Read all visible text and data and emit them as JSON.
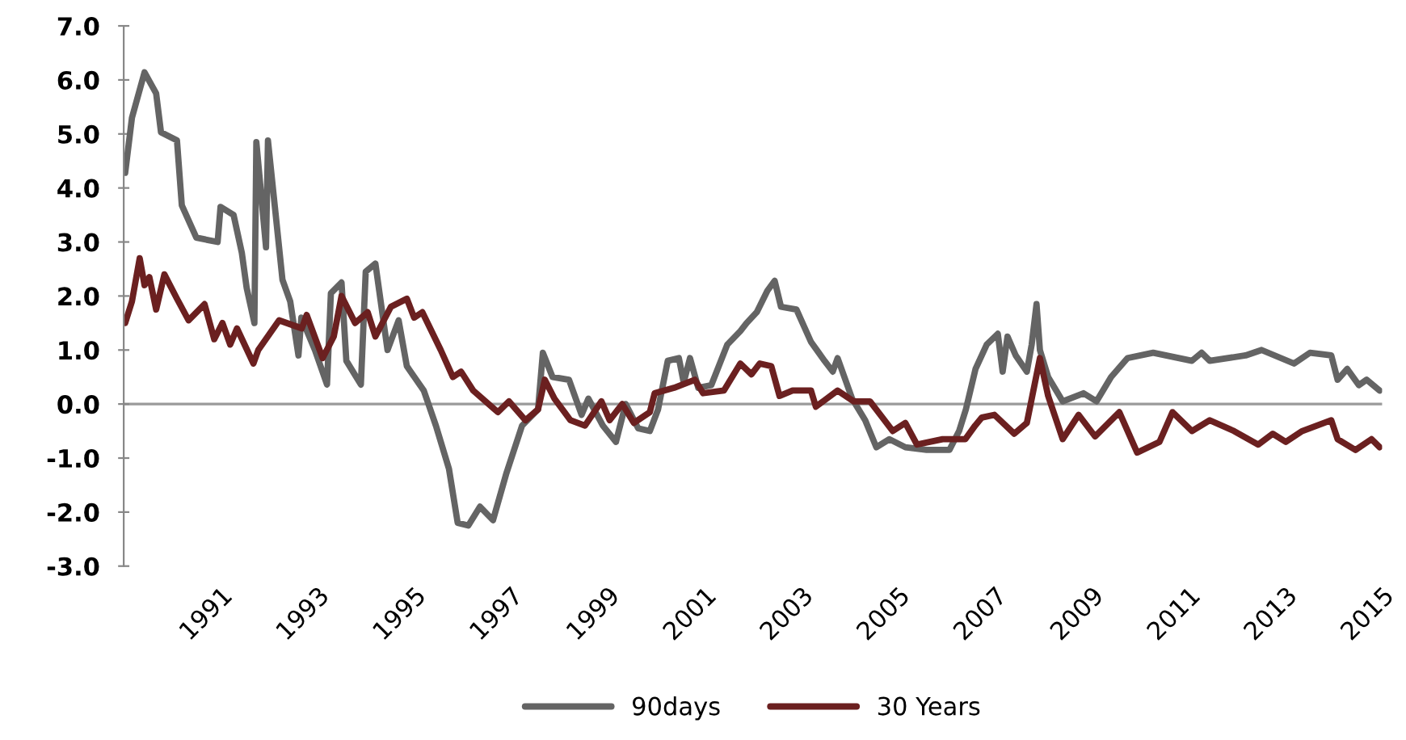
{
  "chart_data": {
    "type": "line",
    "ylim": [
      -3,
      7
    ],
    "yticks": [
      {
        "value": -3,
        "label": "-3.0"
      },
      {
        "value": -2,
        "label": "-2.0"
      },
      {
        "value": -1,
        "label": "-1.0"
      },
      {
        "value": 0,
        "label": "0.0"
      },
      {
        "value": 1,
        "label": "1.0"
      },
      {
        "value": 2,
        "label": "2.0"
      },
      {
        "value": 3,
        "label": "3.0"
      },
      {
        "value": 4,
        "label": "4.0"
      },
      {
        "value": 5,
        "label": "5.0"
      },
      {
        "value": 6,
        "label": "6.0"
      },
      {
        "value": 7,
        "label": "7.0"
      }
    ],
    "xlim": [
      1989,
      2015
    ],
    "xticks": [
      1991,
      1993,
      1995,
      1997,
      1999,
      2001,
      2003,
      2005,
      2007,
      2009,
      2011,
      2013,
      2015
    ],
    "ref_lines": [
      {
        "axis": "y",
        "value": 0,
        "color": "#9a9a9a"
      }
    ],
    "grid": false,
    "legend": "bottom",
    "series": [
      {
        "name": "90days",
        "color": "#646464",
        "x": [
          1989.03,
          1989.17,
          1989.43,
          1989.67,
          1989.77,
          1990.1,
          1990.2,
          1990.5,
          1990.94,
          1991.0,
          1991.27,
          1991.44,
          1991.54,
          1991.7,
          1991.74,
          1991.94,
          1991.98,
          1992.28,
          1992.44,
          1992.61,
          1992.67,
          1992.95,
          1993.2,
          1993.28,
          1993.5,
          1993.6,
          1993.9,
          1994.0,
          1994.2,
          1994.45,
          1994.68,
          1994.85,
          1995.2,
          1995.45,
          1995.72,
          1995.9,
          1996.12,
          1996.36,
          1996.63,
          1996.9,
          1997.23,
          1997.56,
          1997.66,
          1997.86,
          1998.2,
          1998.46,
          1998.6,
          1998.9,
          1999.17,
          1999.37,
          1999.63,
          1999.87,
          2000.04,
          2000.24,
          2000.47,
          2000.57,
          2000.7,
          2000.87,
          2001.14,
          2001.47,
          2001.74,
          2001.87,
          2002.08,
          2002.3,
          2002.45,
          2002.58,
          2002.9,
          2003.2,
          2003.48,
          2003.65,
          2003.75,
          2004.05,
          2004.32,
          2004.55,
          2004.82,
          2005.15,
          2005.59,
          2006.06,
          2006.26,
          2006.4,
          2006.6,
          2006.83,
          2007.06,
          2007.16,
          2007.26,
          2007.43,
          2007.66,
          2007.76,
          2007.86,
          2007.93,
          2008.1,
          2008.4,
          2008.83,
          2009.1,
          2009.4,
          2009.74,
          2010.27,
          2011.07,
          2011.27,
          2011.44,
          2012.18,
          2012.51,
          2013.18,
          2013.51,
          2013.95,
          2014.08,
          2014.28,
          2014.52,
          2014.68,
          2014.95
        ],
        "values": [
          4.28,
          5.3,
          6.14,
          5.75,
          5.03,
          4.88,
          3.68,
          3.08,
          3.0,
          3.65,
          3.5,
          2.8,
          2.15,
          1.5,
          4.85,
          2.9,
          4.88,
          2.3,
          1.9,
          0.9,
          1.6,
          1.0,
          0.36,
          2.05,
          2.25,
          0.8,
          0.36,
          2.45,
          2.6,
          1.0,
          1.55,
          0.7,
          0.25,
          -0.4,
          -1.2,
          -2.2,
          -2.25,
          -1.9,
          -2.15,
          -1.3,
          -0.4,
          -0.1,
          0.95,
          0.5,
          0.45,
          -0.2,
          0.1,
          -0.4,
          -0.7,
          0.0,
          -0.45,
          -0.5,
          -0.1,
          0.8,
          0.85,
          0.4,
          0.85,
          0.3,
          0.35,
          1.1,
          1.35,
          1.5,
          1.7,
          2.1,
          2.28,
          1.8,
          1.75,
          1.15,
          0.8,
          0.6,
          0.85,
          0.1,
          -0.3,
          -0.8,
          -0.65,
          -0.8,
          -0.85,
          -0.85,
          -0.5,
          -0.1,
          0.65,
          1.1,
          1.3,
          0.6,
          1.25,
          0.9,
          0.6,
          1.1,
          1.85,
          1.0,
          0.5,
          0.05,
          0.2,
          0.05,
          0.5,
          0.85,
          0.95,
          0.8,
          0.95,
          0.8,
          0.9,
          1.0,
          0.75,
          0.95,
          0.9,
          0.45,
          0.65,
          0.35,
          0.45,
          0.25
        ]
      },
      {
        "name": "30 Years",
        "color": "#6b2020",
        "x": [
          1989.03,
          1989.17,
          1989.33,
          1989.43,
          1989.53,
          1989.67,
          1989.84,
          1990.1,
          1990.34,
          1990.67,
          1990.87,
          1991.04,
          1991.2,
          1991.34,
          1991.68,
          1991.78,
          1992.21,
          1992.68,
          1992.78,
          1993.11,
          1993.34,
          1993.5,
          1993.78,
          1994.04,
          1994.2,
          1994.52,
          1994.85,
          1995.0,
          1995.17,
          1995.55,
          1995.8,
          1995.97,
          1996.22,
          1996.73,
          1996.96,
          1997.3,
          1997.56,
          1997.7,
          1997.9,
          1998.23,
          1998.53,
          1998.87,
          1999.04,
          1999.3,
          1999.54,
          1999.87,
          1999.97,
          2000.37,
          2000.8,
          2000.97,
          2001.4,
          2001.74,
          2001.97,
          2002.14,
          2002.38,
          2002.55,
          2002.82,
          2003.2,
          2003.3,
          2003.75,
          2004.08,
          2004.42,
          2004.89,
          2005.15,
          2005.39,
          2005.92,
          2006.39,
          2006.59,
          2006.73,
          2006.99,
          2007.4,
          2007.66,
          2007.93,
          2008.1,
          2008.4,
          2008.73,
          2009.07,
          2009.57,
          2009.94,
          2010.4,
          2010.67,
          2011.07,
          2011.44,
          2011.94,
          2012.44,
          2012.74,
          2013.01,
          2013.35,
          2013.95,
          2014.08,
          2014.45,
          2014.78,
          2014.95
        ],
        "values": [
          1.5,
          1.9,
          2.7,
          2.2,
          2.35,
          1.75,
          2.4,
          1.95,
          1.55,
          1.85,
          1.2,
          1.5,
          1.1,
          1.4,
          0.75,
          1.0,
          1.55,
          1.4,
          1.65,
          0.85,
          1.25,
          2.0,
          1.5,
          1.7,
          1.25,
          1.8,
          1.95,
          1.6,
          1.7,
          1.0,
          0.5,
          0.6,
          0.25,
          -0.15,
          0.05,
          -0.3,
          -0.1,
          0.45,
          0.1,
          -0.3,
          -0.4,
          0.05,
          -0.3,
          0.0,
          -0.35,
          -0.15,
          0.2,
          0.3,
          0.45,
          0.2,
          0.25,
          0.75,
          0.55,
          0.75,
          0.7,
          0.15,
          0.25,
          0.25,
          -0.05,
          0.25,
          0.05,
          0.05,
          -0.5,
          -0.35,
          -0.75,
          -0.65,
          -0.65,
          -0.4,
          -0.25,
          -0.2,
          -0.55,
          -0.35,
          0.85,
          0.15,
          -0.65,
          -0.2,
          -0.6,
          -0.15,
          -0.9,
          -0.7,
          -0.15,
          -0.5,
          -0.3,
          -0.5,
          -0.75,
          -0.55,
          -0.7,
          -0.5,
          -0.3,
          -0.65,
          -0.85,
          -0.65,
          -0.8
        ]
      }
    ]
  }
}
